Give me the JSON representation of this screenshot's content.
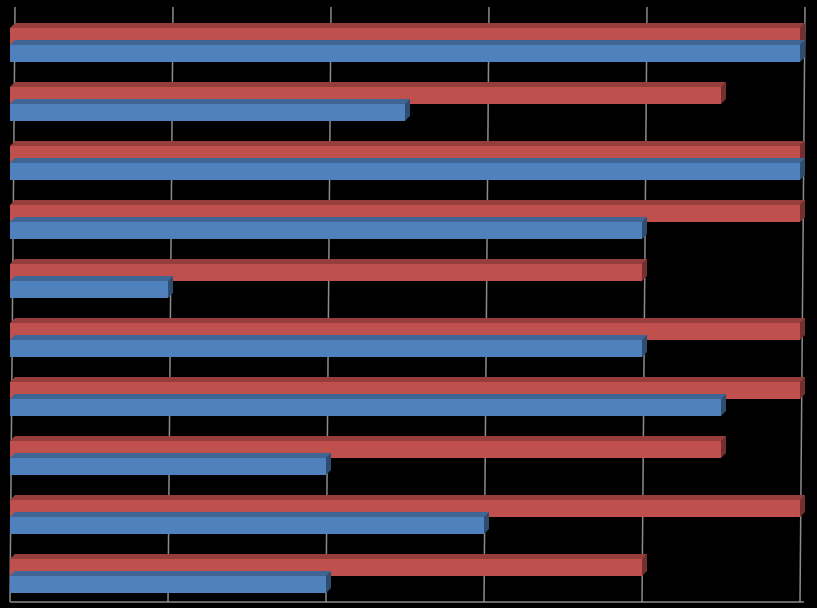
{
  "chart_data": {
    "type": "bar",
    "orientation": "horizontal",
    "style": "3d",
    "grid": true,
    "legend": "none",
    "title": "",
    "xlabel": "",
    "ylabel": "",
    "xlim": [
      0,
      5
    ],
    "categories": [
      "",
      "",
      "",
      "",
      "",
      "",
      "",
      "",
      "",
      ""
    ],
    "series": [
      {
        "color": "#4f81bd",
        "values": [
          5.0,
          2.5,
          5.0,
          4.0,
          1.0,
          4.0,
          4.5,
          2.0,
          3.0,
          2.0
        ]
      },
      {
        "color": "#c0504d",
        "values": [
          5.0,
          4.5,
          5.0,
          5.0,
          4.0,
          5.0,
          5.0,
          4.5,
          5.0,
          4.0
        ]
      }
    ]
  },
  "colors": {
    "background": "#000000",
    "gridline": "#8c8c8c",
    "series_blue": "#4f81bd",
    "series_red": "#c0504d"
  }
}
